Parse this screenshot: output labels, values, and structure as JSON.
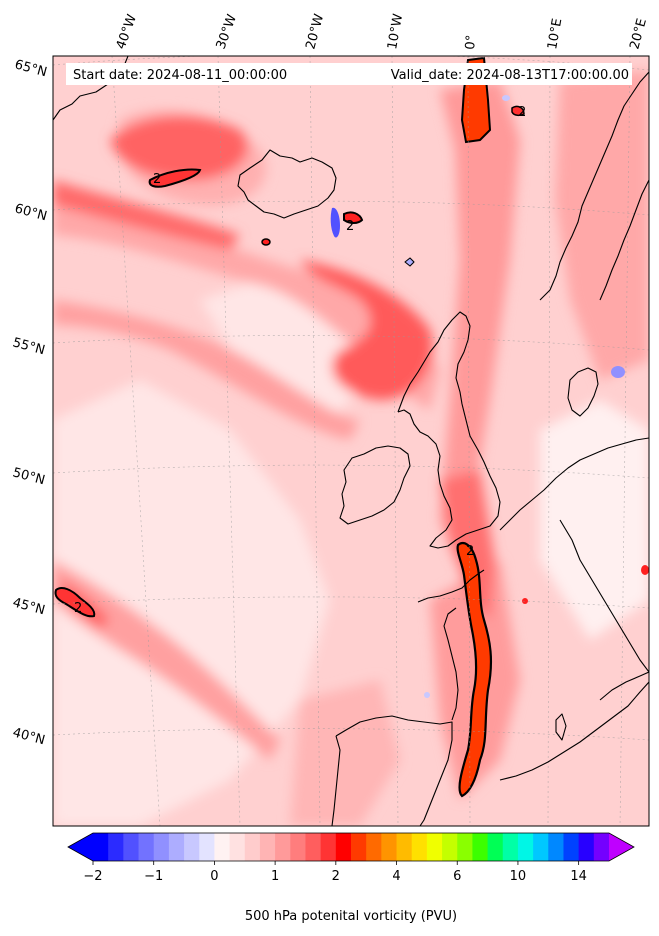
{
  "header": {
    "start_date": "Start date: 2024-08-11_00:00:00",
    "valid_date": "Valid_date: 2024-08-13T17:00:00.00"
  },
  "longitude_labels": [
    "40°W",
    "30°W",
    "20°W",
    "10°W",
    "0°",
    "10°E",
    "20°E"
  ],
  "latitude_labels": [
    "65°N",
    "60°N",
    "55°N",
    "50°N",
    "45°N",
    "40°N"
  ],
  "contour_labels": [
    "2",
    "2",
    "2",
    "2",
    "2"
  ],
  "colorbar": {
    "label": "500 hPa potenital vorticity (PVU)",
    "tick_labels": [
      "−2",
      "−1",
      "0",
      "1",
      "2",
      "4",
      "6",
      "10",
      "14"
    ],
    "levels": [
      -2,
      -1.75,
      -1.5,
      -1.25,
      -1,
      -0.75,
      -0.5,
      -0.25,
      0,
      0.25,
      0.5,
      0.75,
      1,
      1.25,
      1.5,
      1.75,
      2,
      2.5,
      3,
      3.5,
      4,
      4.5,
      5,
      5.5,
      6,
      7,
      8,
      9,
      10,
      11,
      12,
      13,
      14,
      15,
      16
    ],
    "colors": [
      "#0000ff",
      "#2b2bff",
      "#5151ff",
      "#7272ff",
      "#9090ff",
      "#adadff",
      "#c8c8ff",
      "#e3e3ff",
      "#fff2f2",
      "#ffe1e1",
      "#ffcccc",
      "#ffb4b4",
      "#ff9a9a",
      "#ff7d7d",
      "#ff5e5e",
      "#ff3434",
      "#ff0000",
      "#ff3a00",
      "#ff6a00",
      "#ff9400",
      "#ffbb00",
      "#ffe000",
      "#f0ff00",
      "#c4ff00",
      "#8aff00",
      "#3cff00",
      "#00ff55",
      "#00ffa6",
      "#00f6e6",
      "#00c8ff",
      "#0088ff",
      "#0042ff",
      "#2800ff",
      "#7400ff"
    ],
    "under_color": "#0000ff",
    "over_color": "#bf00ff"
  },
  "map_colors": {
    "background": "#ffd0d0",
    "coast": "#000000"
  }
}
